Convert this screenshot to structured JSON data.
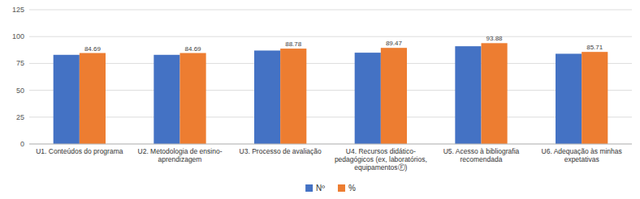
{
  "chart_data": {
    "type": "bar",
    "categories": [
      "U1. Conteúdos do programa",
      "U2. Metodologia de ensino-\naprendizagem",
      "U3. Processo de avaliação",
      "U4. Recursos didático-\npedagógicos (ex, laboratórios,\nequipamentosⒻ)",
      "U5. Acesso à bibliografia\nrecomendada",
      "U6. Adequação às minhas\nexpetativas"
    ],
    "series": [
      {
        "name": "Nº",
        "color": "#4472C4",
        "values": [
          83,
          83,
          87,
          85,
          91,
          84
        ]
      },
      {
        "name": "%",
        "color": "#ED7D31",
        "values": [
          84.69,
          84.69,
          88.78,
          89.47,
          93.88,
          85.71
        ],
        "data_labels": true
      }
    ],
    "ylim": [
      0,
      125
    ],
    "yticks": [
      0,
      25,
      50,
      75,
      100,
      125
    ],
    "grid": true,
    "legend": "bottom"
  }
}
